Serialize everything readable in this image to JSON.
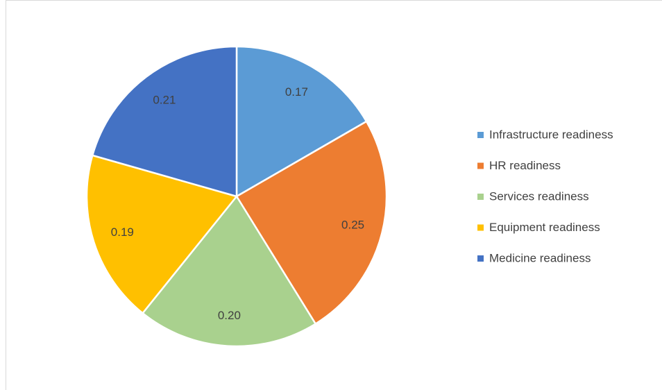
{
  "chart_data": {
    "type": "pie",
    "categories": [
      "Infrastructure readiness",
      "HR readiness",
      "Services readiness",
      "Equipment readiness",
      "Medicine readiness"
    ],
    "values": [
      0.17,
      0.25,
      0.2,
      0.19,
      0.21
    ],
    "value_labels": [
      "0.17",
      "0.25",
      "0.20",
      "0.19",
      "0.21"
    ],
    "colors": [
      "#5b9bd5",
      "#ed7d31",
      "#a9d18e",
      "#ffc000",
      "#4472c4"
    ],
    "legend": "right"
  }
}
